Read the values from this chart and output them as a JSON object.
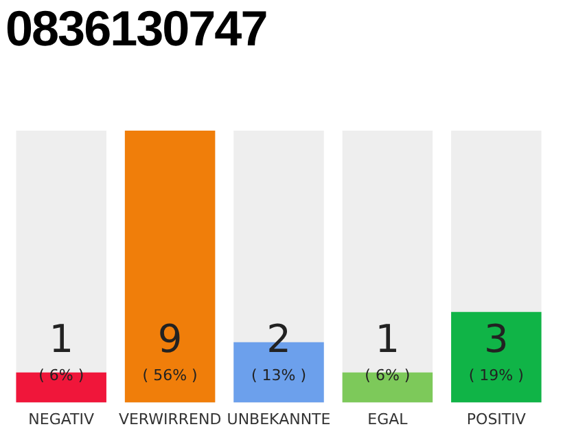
{
  "chart_data": {
    "type": "bar",
    "title": "0836130747",
    "categories": [
      "NEGATIV",
      "VERWIRREND",
      "UNBEKANNTE",
      "EGAL",
      "POSITIV"
    ],
    "values": [
      1,
      9,
      2,
      1,
      3
    ],
    "colors": [
      "#f0163a",
      "#f07e0a",
      "#6ca0ec",
      "#7dc95a",
      "#10b447"
    ],
    "ylim": [
      0,
      9
    ],
    "data_labels": true,
    "grid": false,
    "legend": false,
    "tick_labels": "x",
    "annotations": [
      "( 6% )",
      "( 56% )",
      "( 13% )",
      "( 6% )",
      "( 19% )"
    ]
  }
}
